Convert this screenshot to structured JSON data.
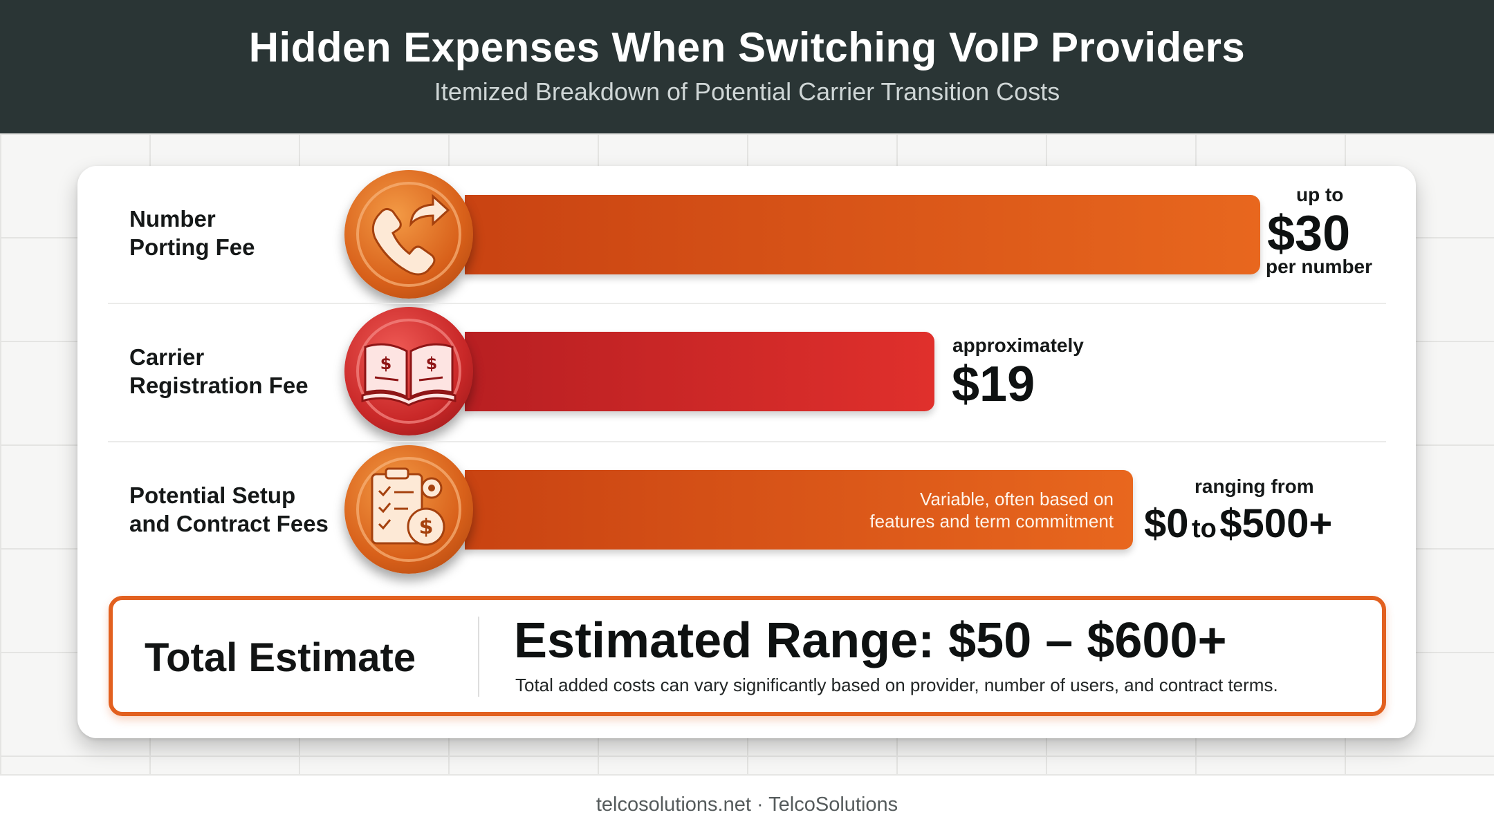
{
  "header": {
    "title": "Hidden Expenses When Switching VoIP Providers",
    "subtitle": "Itemized Breakdown of Potential Carrier Transition Costs"
  },
  "chart_data": {
    "type": "bar",
    "orientation": "horizontal",
    "categories": [
      "Number Porting Fee",
      "Carrier Registration Fee",
      "Potential Setup and Contract Fees"
    ],
    "values": [
      30,
      19,
      500
    ],
    "bar_fill_fraction": [
      1.0,
      0.59,
      0.84
    ],
    "items": [
      {
        "label_lines": [
          "Number",
          "Porting Fee"
        ],
        "icon": "phone-forward-icon",
        "color": "#d9561a",
        "value_prefix": "up to",
        "value_text": "$30",
        "value_suffix": "per number"
      },
      {
        "label_lines": [
          "Carrier",
          "Registration Fee"
        ],
        "icon": "open-book-dollar-icon",
        "color": "#cf2a2a",
        "value_prefix": "approximately",
        "value_text": "$19",
        "value_suffix": ""
      },
      {
        "label_lines": [
          "Potential Setup",
          "and Contract Fees"
        ],
        "icon": "checklist-gear-dollar-icon",
        "color": "#de5a1a",
        "value_prefix": "ranging from",
        "value_text_a": "$0",
        "value_text_to": "to",
        "value_text_b": "$500+",
        "bar_note_lines": [
          "Variable, often based on",
          "features and term commitment"
        ]
      }
    ]
  },
  "total": {
    "label": "Total Estimate",
    "range": "Estimated Range: $50 – $600+",
    "note": "Total added costs can vary significantly based on provider, number of users, and contract terms."
  },
  "footer": {
    "credit": "telcosolutions.net · TelcoSolutions"
  },
  "colors": {
    "header_bg": "#2a3535",
    "accent_orange": "#e2601f",
    "accent_red": "#cf2a2a"
  }
}
